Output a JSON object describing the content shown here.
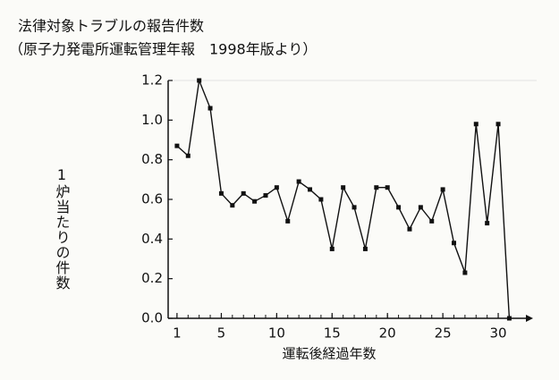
{
  "chart_data": {
    "type": "line",
    "title": "法律対象トラブルの報告件数",
    "subtitle": "（原子力発電所運転管理年報　1998年版より）",
    "y_label": "1炉当たりの件数",
    "x_label": "運転後経過年数",
    "x": [
      1,
      2,
      3,
      4,
      5,
      6,
      7,
      8,
      9,
      10,
      11,
      12,
      13,
      14,
      15,
      16,
      17,
      18,
      19,
      20,
      21,
      22,
      23,
      24,
      25,
      26,
      27,
      28,
      29,
      30,
      31
    ],
    "series": [
      {
        "color": "#111111",
        "values": [
          0.87,
          0.82,
          1.2,
          1.06,
          0.63,
          0.57,
          0.63,
          0.59,
          0.62,
          0.66,
          0.49,
          0.69,
          0.65,
          0.6,
          0.35,
          0.66,
          0.56,
          0.35,
          0.66,
          0.66,
          0.56,
          0.45,
          0.56,
          0.49,
          0.65,
          0.38,
          0.23,
          0.98,
          0.48,
          0.98,
          0
        ]
      }
    ],
    "xlim": [
      0.2,
      32.5
    ],
    "xticks": [
      1,
      5,
      10,
      15,
      20,
      25,
      30
    ],
    "ylim": [
      0,
      1.2
    ],
    "yticks": [
      {
        "value": 0,
        "label": "0.0"
      },
      0.2,
      0.4,
      0.6,
      0.8,
      {
        "value": 1,
        "label": "1.0"
      },
      1.2
    ]
  }
}
